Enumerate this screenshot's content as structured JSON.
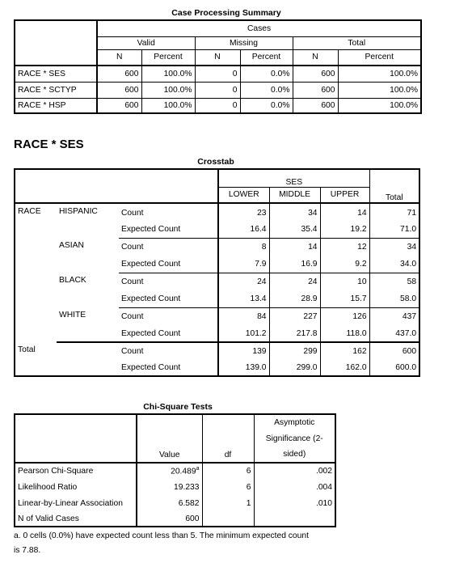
{
  "cps": {
    "title": "Case Processing Summary",
    "cases": "Cases",
    "valid": "Valid",
    "missing": "Missing",
    "total": "Total",
    "n": "N",
    "percent": "Percent",
    "rows": [
      {
        "label": "RACE * SES",
        "vn": "600",
        "vp": "100.0%",
        "mn": "0",
        "mp": "0.0%",
        "tn": "600",
        "tp": "100.0%"
      },
      {
        "label": "RACE * SCTYP",
        "vn": "600",
        "vp": "100.0%",
        "mn": "0",
        "mp": "0.0%",
        "tn": "600",
        "tp": "100.0%"
      },
      {
        "label": "RACE * HSP",
        "vn": "600",
        "vp": "100.0%",
        "mn": "0",
        "mp": "0.0%",
        "tn": "600",
        "tp": "100.0%"
      }
    ]
  },
  "section": {
    "title": "RACE * SES"
  },
  "crosstab": {
    "title": "Crosstab",
    "ses": "SES",
    "cols": [
      "LOWER",
      "MIDDLE",
      "UPPER"
    ],
    "total": "Total",
    "race": "RACE",
    "count": "Count",
    "expected": "Expected Count",
    "groups": [
      {
        "name": "HISPANIC",
        "count": [
          "23",
          "34",
          "14",
          "71"
        ],
        "exp": [
          "16.4",
          "35.4",
          "19.2",
          "71.0"
        ]
      },
      {
        "name": "ASIAN",
        "count": [
          "8",
          "14",
          "12",
          "34"
        ],
        "exp": [
          "7.9",
          "16.9",
          "9.2",
          "34.0"
        ]
      },
      {
        "name": "BLACK",
        "count": [
          "24",
          "24",
          "10",
          "58"
        ],
        "exp": [
          "13.4",
          "28.9",
          "15.7",
          "58.0"
        ]
      },
      {
        "name": "WHITE",
        "count": [
          "84",
          "227",
          "126",
          "437"
        ],
        "exp": [
          "101.2",
          "217.8",
          "118.0",
          "437.0"
        ]
      }
    ],
    "total_row": {
      "label": "Total",
      "count": [
        "139",
        "299",
        "162",
        "600"
      ],
      "exp": [
        "139.0",
        "299.0",
        "162.0",
        "600.0"
      ]
    }
  },
  "chisq": {
    "title": "Chi-Square Tests",
    "value": "Value",
    "df": "df",
    "sig1": "Asymptotic",
    "sig2": "Significance (2-",
    "sig3": "sided)",
    "rows": [
      {
        "label": "Pearson Chi-Square",
        "value": "20.489",
        "sup": "a",
        "df": "6",
        "sig": ".002"
      },
      {
        "label": "Likelihood Ratio",
        "value": "19.233",
        "sup": "",
        "df": "6",
        "sig": ".004"
      },
      {
        "label": "Linear-by-Linear Association",
        "value": "6.582",
        "sup": "",
        "df": "1",
        "sig": ".010"
      },
      {
        "label": "N of Valid Cases",
        "value": "600",
        "sup": "",
        "df": "",
        "sig": ""
      }
    ],
    "note1": "a. 0 cells (0.0%) have expected count less than 5. The minimum expected count",
    "note2": "is 7.88."
  }
}
